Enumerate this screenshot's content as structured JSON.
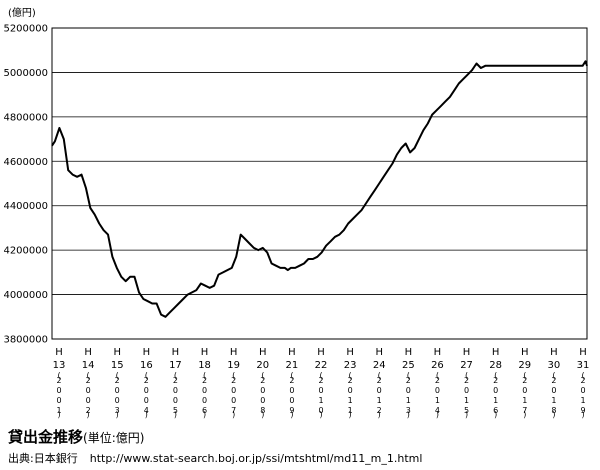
{
  "chart_data": {
    "type": "line",
    "unit_label": "(億円)",
    "ylim": [
      3800000,
      5200000
    ],
    "y_ticks": [
      "3800000",
      "4000000",
      "4200000",
      "4400000",
      "4600000",
      "4800000",
      "5000000",
      "5200000"
    ],
    "grid": true,
    "x_ticks": [
      {
        "era": "H",
        "num": "13",
        "year": "2001"
      },
      {
        "era": "H",
        "num": "14",
        "year": "2002"
      },
      {
        "era": "H",
        "num": "15",
        "year": "2003"
      },
      {
        "era": "H",
        "num": "16",
        "year": "2004"
      },
      {
        "era": "H",
        "num": "17",
        "year": "2005"
      },
      {
        "era": "H",
        "num": "18",
        "year": "2006"
      },
      {
        "era": "H",
        "num": "19",
        "year": "2007"
      },
      {
        "era": "H",
        "num": "20",
        "year": "2008"
      },
      {
        "era": "H",
        "num": "21",
        "year": "2009"
      },
      {
        "era": "H",
        "num": "22",
        "year": "2010"
      },
      {
        "era": "H",
        "num": "23",
        "year": "2011"
      },
      {
        "era": "H",
        "num": "24",
        "year": "2012"
      },
      {
        "era": "H",
        "num": "25",
        "year": "2013"
      },
      {
        "era": "H",
        "num": "26",
        "year": "2014"
      },
      {
        "era": "H",
        "num": "27",
        "year": "2015"
      },
      {
        "era": "H",
        "num": "28",
        "year": "2016"
      },
      {
        "era": "H",
        "num": "29",
        "year": "2017"
      },
      {
        "era": "H",
        "num": "30",
        "year": "2018"
      },
      {
        "era": "H",
        "num": "31",
        "year": "2019"
      }
    ],
    "x": [
      2001.0,
      2001.1,
      2001.25,
      2001.4,
      2001.55,
      2001.7,
      2001.85,
      2002.0,
      2002.15,
      2002.3,
      2002.45,
      2002.6,
      2002.75,
      2002.9,
      2003.05,
      2003.2,
      2003.35,
      2003.5,
      2003.65,
      2003.8,
      2003.95,
      2004.1,
      2004.25,
      2004.4,
      2004.55,
      2004.7,
      2004.85,
      2005.0,
      2005.15,
      2005.3,
      2005.45,
      2005.6,
      2005.75,
      2005.9,
      2006.05,
      2006.2,
      2006.35,
      2006.5,
      2006.65,
      2006.8,
      2006.95,
      2007.1,
      2007.25,
      2007.4,
      2007.55,
      2007.7,
      2007.85,
      2008.0,
      2008.15,
      2008.3,
      2008.45,
      2008.6,
      2008.75,
      2008.9,
      2009.0,
      2009.1,
      2009.25,
      2009.4,
      2009.55,
      2009.7,
      2009.85,
      2010.0,
      2010.15,
      2010.3,
      2010.45,
      2010.6,
      2010.75,
      2010.9,
      2011.05,
      2011.2,
      2011.35,
      2011.5,
      2011.65,
      2011.8,
      2011.95,
      2012.1,
      2012.25,
      2012.4,
      2012.55,
      2012.7,
      2012.85,
      2013.0,
      2013.15,
      2013.3,
      2013.45,
      2013.6,
      2013.75,
      2013.9,
      2014.05,
      2014.2,
      2014.35,
      2014.5,
      2014.65,
      2014.8,
      2014.95,
      2015.1,
      2015.25,
      2015.4,
      2015.55,
      2015.7,
      2015.85,
      2016.0,
      2016.15,
      2016.3,
      2016.45,
      2016.6,
      2016.75,
      2016.9,
      2017.05,
      2017.2,
      2017.35,
      2017.5,
      2017.65,
      2017.8,
      2017.95,
      2018.1,
      2018.25,
      2018.4,
      2018.55,
      2018.7,
      2018.85,
      2019.0,
      2019.1,
      2019.15
    ],
    "values": [
      4670000,
      4690000,
      4750000,
      4700000,
      4560000,
      4540000,
      4530000,
      4540000,
      4480000,
      4390000,
      4360000,
      4320000,
      4290000,
      4270000,
      4170000,
      4120000,
      4080000,
      4060000,
      4080000,
      4080000,
      4010000,
      3980000,
      3970000,
      3960000,
      3960000,
      3910000,
      3900000,
      3920000,
      3940000,
      3960000,
      3980000,
      4000000,
      4010000,
      4020000,
      4050000,
      4040000,
      4030000,
      4040000,
      4090000,
      4100000,
      4110000,
      4120000,
      4170000,
      4270000,
      4250000,
      4230000,
      4210000,
      4200000,
      4210000,
      4190000,
      4140000,
      4130000,
      4120000,
      4120000,
      4110000,
      4120000,
      4120000,
      4130000,
      4140000,
      4160000,
      4160000,
      4170000,
      4190000,
      4220000,
      4240000,
      4260000,
      4270000,
      4290000,
      4320000,
      4340000,
      4360000,
      4380000,
      4410000,
      4440000,
      4470000,
      4500000,
      4530000,
      4560000,
      4590000,
      4630000,
      4660000,
      4680000,
      4640000,
      4660000,
      4700000,
      4740000,
      4770000,
      4810000,
      4830000,
      4850000,
      4870000,
      4890000,
      4920000,
      4950000,
      4970000,
      4990000,
      5010000,
      5040000,
      5020000,
      5030000,
      5030000,
      5030000,
      5030000,
      5030000,
      5030000,
      5030000,
      5030000,
      5030000,
      5030000,
      5030000,
      5030000,
      5030000,
      5030000,
      5030000,
      5030000,
      5030000,
      5030000,
      5030000,
      5030000,
      5030000,
      5030000,
      5030000,
      5050000,
      5030000
    ]
  },
  "caption": {
    "title": "貸出金推移",
    "subtitle": "(単位:億円)"
  },
  "source": {
    "label": "出典:日本銀行",
    "url": "http://www.stat-search.boj.or.jp/ssi/mtshtml/md11_m_1.html"
  }
}
